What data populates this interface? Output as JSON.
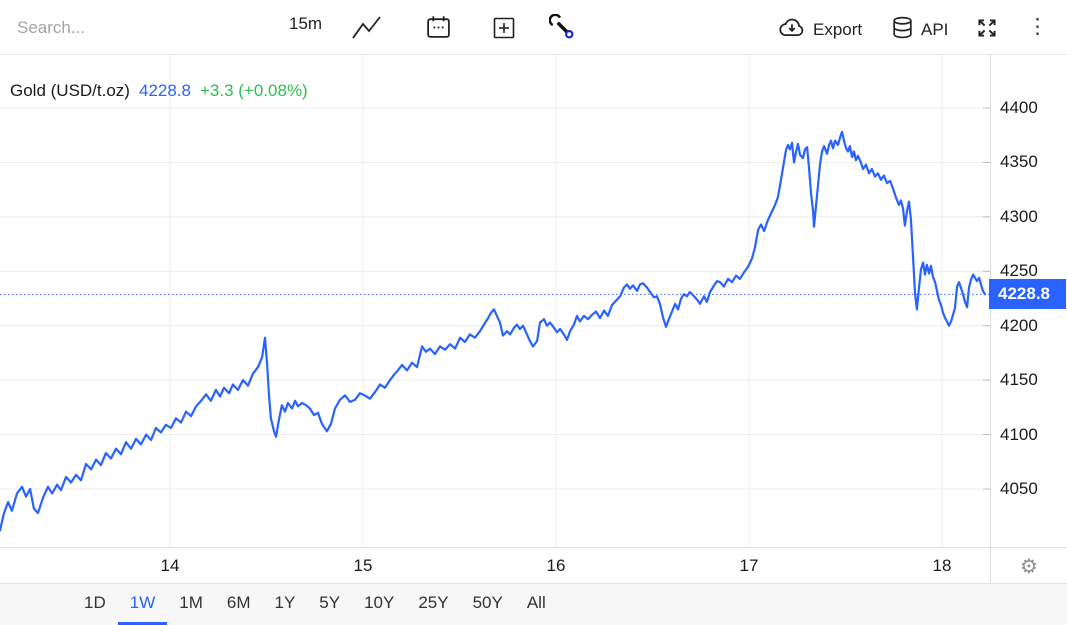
{
  "toolbar": {
    "search_placeholder": "Search...",
    "interval": "15m",
    "export_label": "Export",
    "api_label": "API"
  },
  "glyphs": {
    "more_menu": "⋮",
    "settings": "⚙"
  },
  "icons": {
    "chart_type": "zigzag-line",
    "calendar": "calendar-dots",
    "add": "plus-square",
    "tools": "wrench",
    "export": "cloud-download",
    "api": "database-cylinder",
    "fullscreen": "expand-arrows",
    "more": "kebab-vertical",
    "settings": "gear"
  },
  "legend": {
    "symbol": "Gold (USD/t.oz)",
    "price": "4228.8",
    "change": "+3.3 (+0.08%)"
  },
  "colors": {
    "line": "#2962ff",
    "accent_blue": "#2962ff",
    "positive_green": "#2ebd4e",
    "grid": "#ececec",
    "badge_bg": "#2962ff"
  },
  "range_tabs": {
    "items": [
      "1D",
      "1W",
      "1M",
      "6M",
      "1Y",
      "5Y",
      "10Y",
      "25Y",
      "50Y",
      "All"
    ],
    "active": "1W"
  },
  "chart_data": {
    "type": "line",
    "title": "Gold (USD/t.oz)",
    "interval": "15m",
    "current_price": 4228.8,
    "change_abs": 3.3,
    "change_pct": "+0.08%",
    "x_unit": "day of month",
    "x_ticks": [
      14,
      15,
      16,
      17,
      18
    ],
    "y_ticks": [
      4050,
      4100,
      4150,
      4200,
      4250,
      4300,
      4350,
      4400
    ],
    "x_range": [
      13.12,
      18.25
    ],
    "y_range": [
      3995,
      4450
    ],
    "grid": true,
    "legend_position": "top-left",
    "series": [
      {
        "name": "Gold (USD/t.oz)",
        "points": [
          [
            13.119,
            4012
          ],
          [
            13.14,
            4028
          ],
          [
            13.161,
            4038
          ],
          [
            13.181,
            4030
          ],
          [
            13.207,
            4046
          ],
          [
            13.233,
            4052
          ],
          [
            13.254,
            4043
          ],
          [
            13.275,
            4050
          ],
          [
            13.295,
            4032
          ],
          [
            13.316,
            4028
          ],
          [
            13.342,
            4042
          ],
          [
            13.368,
            4052
          ],
          [
            13.389,
            4046
          ],
          [
            13.415,
            4054
          ],
          [
            13.435,
            4049
          ],
          [
            13.461,
            4061
          ],
          [
            13.487,
            4056
          ],
          [
            13.513,
            4063
          ],
          [
            13.539,
            4058
          ],
          [
            13.565,
            4073
          ],
          [
            13.591,
            4068
          ],
          [
            13.617,
            4077
          ],
          [
            13.642,
            4072
          ],
          [
            13.668,
            4083
          ],
          [
            13.694,
            4078
          ],
          [
            13.72,
            4087
          ],
          [
            13.746,
            4082
          ],
          [
            13.772,
            4093
          ],
          [
            13.798,
            4087
          ],
          [
            13.824,
            4096
          ],
          [
            13.85,
            4091
          ],
          [
            13.876,
            4100
          ],
          [
            13.902,
            4095
          ],
          [
            13.927,
            4106
          ],
          [
            13.953,
            4102
          ],
          [
            13.979,
            4109
          ],
          [
            14.005,
            4106
          ],
          [
            14.031,
            4115
          ],
          [
            14.057,
            4111
          ],
          [
            14.083,
            4121
          ],
          [
            14.109,
            4117
          ],
          [
            14.135,
            4126
          ],
          [
            14.161,
            4131
          ],
          [
            14.187,
            4137
          ],
          [
            14.212,
            4131
          ],
          [
            14.238,
            4141
          ],
          [
            14.259,
            4135
          ],
          [
            14.28,
            4143
          ],
          [
            14.306,
            4138
          ],
          [
            14.326,
            4146
          ],
          [
            14.352,
            4141
          ],
          [
            14.378,
            4150
          ],
          [
            14.404,
            4145
          ],
          [
            14.43,
            4156
          ],
          [
            14.456,
            4162
          ],
          [
            14.477,
            4171
          ],
          [
            14.492,
            4189
          ],
          [
            14.503,
            4165
          ],
          [
            14.513,
            4136
          ],
          [
            14.523,
            4115
          ],
          [
            14.539,
            4103
          ],
          [
            14.549,
            4098
          ],
          [
            14.565,
            4114
          ],
          [
            14.58,
            4127
          ],
          [
            14.596,
            4121
          ],
          [
            14.611,
            4129
          ],
          [
            14.632,
            4124
          ],
          [
            14.648,
            4131
          ],
          [
            14.663,
            4126
          ],
          [
            14.684,
            4129
          ],
          [
            14.705,
            4127
          ],
          [
            14.725,
            4124
          ],
          [
            14.746,
            4118
          ],
          [
            14.767,
            4120
          ],
          [
            14.787,
            4110
          ],
          [
            14.813,
            4103
          ],
          [
            14.834,
            4110
          ],
          [
            14.855,
            4124
          ],
          [
            14.881,
            4132
          ],
          [
            14.907,
            4136
          ],
          [
            14.933,
            4130
          ],
          [
            14.959,
            4132
          ],
          [
            14.984,
            4138
          ],
          [
            15.01,
            4136
          ],
          [
            15.036,
            4133
          ],
          [
            15.062,
            4139
          ],
          [
            15.088,
            4146
          ],
          [
            15.114,
            4143
          ],
          [
            15.14,
            4150
          ],
          [
            15.161,
            4155
          ],
          [
            15.181,
            4159
          ],
          [
            15.202,
            4164
          ],
          [
            15.228,
            4159
          ],
          [
            15.254,
            4166
          ],
          [
            15.28,
            4162
          ],
          [
            15.306,
            4181
          ],
          [
            15.326,
            4176
          ],
          [
            15.347,
            4179
          ],
          [
            15.373,
            4174
          ],
          [
            15.399,
            4181
          ],
          [
            15.425,
            4178
          ],
          [
            15.451,
            4183
          ],
          [
            15.477,
            4179
          ],
          [
            15.503,
            4189
          ],
          [
            15.528,
            4185
          ],
          [
            15.554,
            4192
          ],
          [
            15.58,
            4189
          ],
          [
            15.606,
            4195
          ],
          [
            15.627,
            4201
          ],
          [
            15.648,
            4207
          ],
          [
            15.663,
            4212
          ],
          [
            15.679,
            4215
          ],
          [
            15.694,
            4209
          ],
          [
            15.71,
            4203
          ],
          [
            15.725,
            4191
          ],
          [
            15.746,
            4195
          ],
          [
            15.762,
            4192
          ],
          [
            15.782,
            4198
          ],
          [
            15.798,
            4201
          ],
          [
            15.813,
            4197
          ],
          [
            15.829,
            4200
          ],
          [
            15.85,
            4192
          ],
          [
            15.865,
            4186
          ],
          [
            15.881,
            4181
          ],
          [
            15.902,
            4186
          ],
          [
            15.917,
            4203
          ],
          [
            15.938,
            4206
          ],
          [
            15.953,
            4200
          ],
          [
            15.969,
            4203
          ],
          [
            15.99,
            4198
          ],
          [
            16.005,
            4194
          ],
          [
            16.021,
            4197
          ],
          [
            16.041,
            4192
          ],
          [
            16.057,
            4187
          ],
          [
            16.073,
            4195
          ],
          [
            16.093,
            4201
          ],
          [
            16.109,
            4209
          ],
          [
            16.124,
            4204
          ],
          [
            16.145,
            4209
          ],
          [
            16.166,
            4206
          ],
          [
            16.187,
            4210
          ],
          [
            16.207,
            4213
          ],
          [
            16.228,
            4207
          ],
          [
            16.249,
            4214
          ],
          [
            16.269,
            4209
          ],
          [
            16.29,
            4219
          ],
          [
            16.311,
            4223
          ],
          [
            16.332,
            4227
          ],
          [
            16.352,
            4235
          ],
          [
            16.368,
            4238
          ],
          [
            16.383,
            4234
          ],
          [
            16.399,
            4237
          ],
          [
            16.42,
            4232
          ],
          [
            16.435,
            4238
          ],
          [
            16.451,
            4239
          ],
          [
            16.472,
            4235
          ],
          [
            16.487,
            4231
          ],
          [
            16.508,
            4226
          ],
          [
            16.523,
            4227
          ],
          [
            16.539,
            4220
          ],
          [
            16.554,
            4208
          ],
          [
            16.57,
            4199
          ],
          [
            16.585,
            4206
          ],
          [
            16.601,
            4213
          ],
          [
            16.617,
            4220
          ],
          [
            16.632,
            4215
          ],
          [
            16.648,
            4225
          ],
          [
            16.663,
            4229
          ],
          [
            16.679,
            4227
          ],
          [
            16.694,
            4231
          ],
          [
            16.715,
            4227
          ],
          [
            16.731,
            4224
          ],
          [
            16.746,
            4220
          ],
          [
            16.767,
            4227
          ],
          [
            16.782,
            4222
          ],
          [
            16.798,
            4231
          ],
          [
            16.819,
            4237
          ],
          [
            16.834,
            4241
          ],
          [
            16.85,
            4240
          ],
          [
            16.87,
            4236
          ],
          [
            16.891,
            4243
          ],
          [
            16.912,
            4240
          ],
          [
            16.933,
            4246
          ],
          [
            16.953,
            4243
          ],
          [
            16.974,
            4249
          ],
          [
            16.995,
            4254
          ],
          [
            17.016,
            4262
          ],
          [
            17.031,
            4272
          ],
          [
            17.047,
            4288
          ],
          [
            17.062,
            4293
          ],
          [
            17.078,
            4287
          ],
          [
            17.098,
            4297
          ],
          [
            17.119,
            4305
          ],
          [
            17.135,
            4311
          ],
          [
            17.15,
            4318
          ],
          [
            17.166,
            4334
          ],
          [
            17.181,
            4350
          ],
          [
            17.192,
            4362
          ],
          [
            17.202,
            4366
          ],
          [
            17.212,
            4362
          ],
          [
            17.223,
            4368
          ],
          [
            17.233,
            4350
          ],
          [
            17.244,
            4360
          ],
          [
            17.254,
            4367
          ],
          [
            17.264,
            4357
          ],
          [
            17.28,
            4354
          ],
          [
            17.29,
            4362
          ],
          [
            17.301,
            4364
          ],
          [
            17.311,
            4345
          ],
          [
            17.321,
            4322
          ],
          [
            17.332,
            4305
          ],
          [
            17.337,
            4291
          ],
          [
            17.347,
            4310
          ],
          [
            17.358,
            4330
          ],
          [
            17.368,
            4348
          ],
          [
            17.378,
            4360
          ],
          [
            17.389,
            4365
          ],
          [
            17.404,
            4358
          ],
          [
            17.415,
            4366
          ],
          [
            17.425,
            4370
          ],
          [
            17.435,
            4363
          ],
          [
            17.446,
            4370
          ],
          [
            17.461,
            4366
          ],
          [
            17.472,
            4373
          ],
          [
            17.482,
            4378
          ],
          [
            17.492,
            4370
          ],
          [
            17.503,
            4363
          ],
          [
            17.513,
            4360
          ],
          [
            17.523,
            4365
          ],
          [
            17.534,
            4355
          ],
          [
            17.544,
            4360
          ],
          [
            17.554,
            4352
          ],
          [
            17.565,
            4356
          ],
          [
            17.575,
            4352
          ],
          [
            17.591,
            4344
          ],
          [
            17.606,
            4348
          ],
          [
            17.622,
            4340
          ],
          [
            17.637,
            4344
          ],
          [
            17.653,
            4337
          ],
          [
            17.668,
            4340
          ],
          [
            17.684,
            4334
          ],
          [
            17.699,
            4338
          ],
          [
            17.715,
            4331
          ],
          [
            17.731,
            4333
          ],
          [
            17.746,
            4326
          ],
          [
            17.761,
            4318
          ],
          [
            17.777,
            4311
          ],
          [
            17.787,
            4315
          ],
          [
            17.798,
            4308
          ],
          [
            17.808,
            4292
          ],
          [
            17.819,
            4306
          ],
          [
            17.829,
            4314
          ],
          [
            17.839,
            4298
          ],
          [
            17.85,
            4262
          ],
          [
            17.86,
            4230
          ],
          [
            17.87,
            4215
          ],
          [
            17.881,
            4235
          ],
          [
            17.891,
            4252
          ],
          [
            17.902,
            4258
          ],
          [
            17.912,
            4247
          ],
          [
            17.922,
            4256
          ],
          [
            17.933,
            4248
          ],
          [
            17.943,
            4255
          ],
          [
            17.953,
            4245
          ],
          [
            17.964,
            4240
          ],
          [
            17.974,
            4232
          ],
          [
            17.984,
            4224
          ],
          [
            17.995,
            4219
          ],
          [
            18.005,
            4212
          ],
          [
            18.016,
            4207
          ],
          [
            18.026,
            4204
          ],
          [
            18.036,
            4200
          ],
          [
            18.047,
            4204
          ],
          [
            18.057,
            4210
          ],
          [
            18.067,
            4216
          ],
          [
            18.078,
            4236
          ],
          [
            18.088,
            4240
          ],
          [
            18.098,
            4235
          ],
          [
            18.109,
            4229
          ],
          [
            18.119,
            4222
          ],
          [
            18.13,
            4217
          ],
          [
            18.14,
            4235
          ],
          [
            18.15,
            4242
          ],
          [
            18.161,
            4247
          ],
          [
            18.171,
            4244
          ],
          [
            18.181,
            4241
          ],
          [
            18.192,
            4244
          ],
          [
            18.202,
            4238
          ],
          [
            18.212,
            4232
          ],
          [
            18.223,
            4229
          ]
        ]
      }
    ]
  }
}
